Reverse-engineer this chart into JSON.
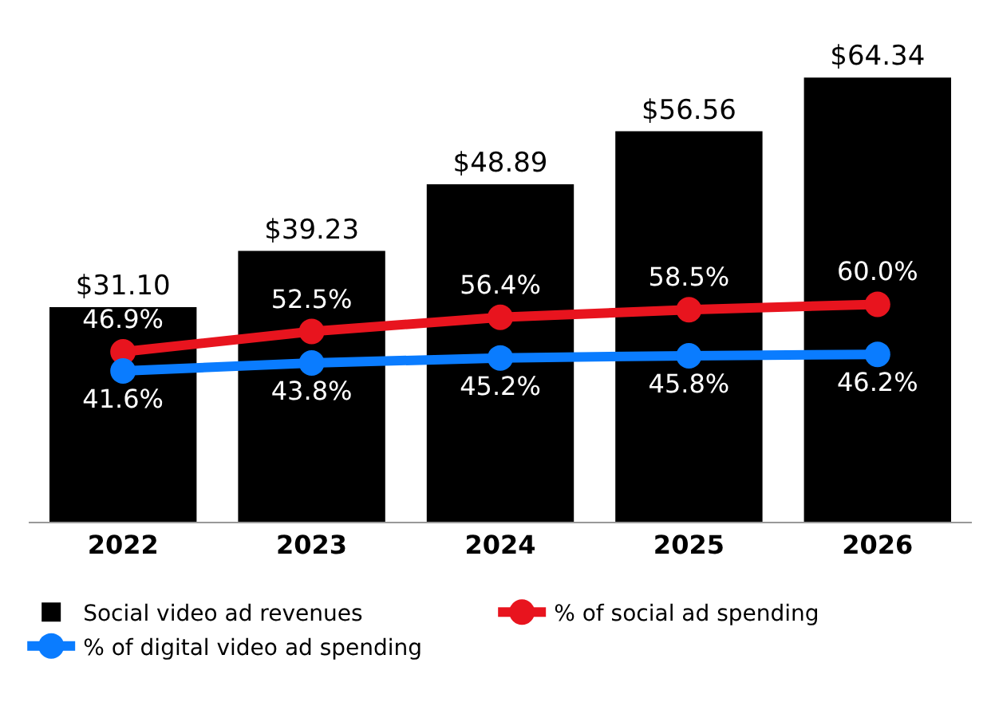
{
  "chart_data": {
    "type": "bar",
    "categories": [
      "2022",
      "2023",
      "2024",
      "2025",
      "2026"
    ],
    "series": [
      {
        "name": "Social video ad revenues",
        "color": "#000000",
        "values": [
          31.1,
          39.23,
          48.89,
          56.56,
          64.34
        ],
        "value_labels": [
          "$31.10",
          "$39.23",
          "$48.89",
          "$56.56",
          "$64.34"
        ]
      },
      {
        "name": "% of social ad spending",
        "type": "line",
        "axis": "y2",
        "color": "#e8141e",
        "values": [
          46.9,
          52.5,
          56.4,
          58.5,
          60.0
        ],
        "value_labels": [
          "46.9%",
          "52.5%",
          "56.4%",
          "58.5%",
          "60.0%"
        ]
      },
      {
        "name": "% of digital video ad spending",
        "type": "line",
        "axis": "y2",
        "color": "#0a7cff",
        "values": [
          41.6,
          43.8,
          45.2,
          45.8,
          46.2
        ],
        "value_labels": [
          "41.6%",
          "43.8%",
          "45.2%",
          "45.8%",
          "46.2%"
        ]
      }
    ],
    "tick_labels": "x",
    "grid": false,
    "legend": "bottom",
    "marker": "circle",
    "line_style": "solid"
  }
}
